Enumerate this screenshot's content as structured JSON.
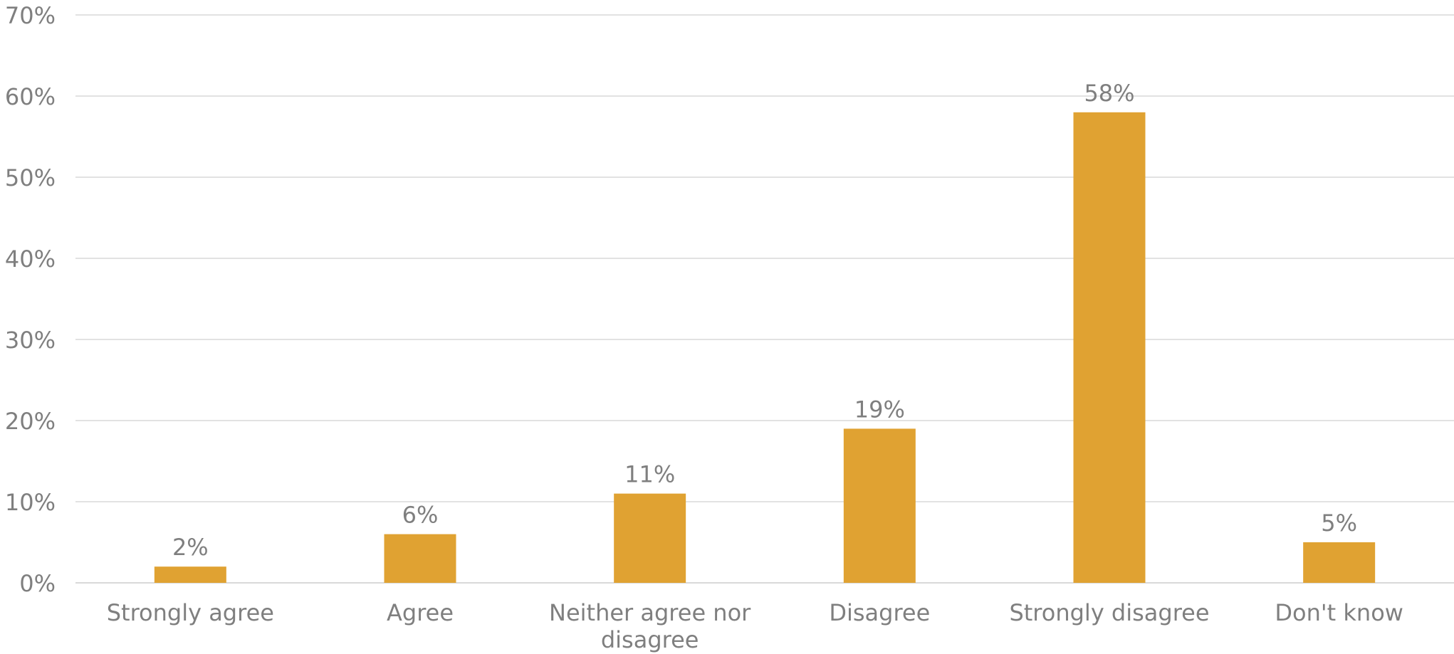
{
  "chart_data": {
    "type": "bar",
    "categories": [
      [
        "Strongly agree"
      ],
      [
        "Agree"
      ],
      [
        "Neither agree nor",
        "disagree"
      ],
      [
        "Disagree"
      ],
      [
        "Strongly disagree"
      ],
      [
        "Don't know"
      ]
    ],
    "values": [
      2,
      6,
      11,
      19,
      58,
      5
    ],
    "data_labels": [
      "2%",
      "6%",
      "11%",
      "19%",
      "58%",
      "5%"
    ],
    "ylim": [
      0,
      70
    ],
    "y_ticks": [
      0,
      10,
      20,
      30,
      40,
      50,
      60,
      70
    ],
    "y_tick_labels": [
      "0%",
      "10%",
      "20%",
      "30%",
      "40%",
      "50%",
      "60%",
      "70%"
    ],
    "title": "",
    "xlabel": "",
    "ylabel": "",
    "grid": true,
    "legend": "none",
    "bar_color": "#E0A232"
  }
}
